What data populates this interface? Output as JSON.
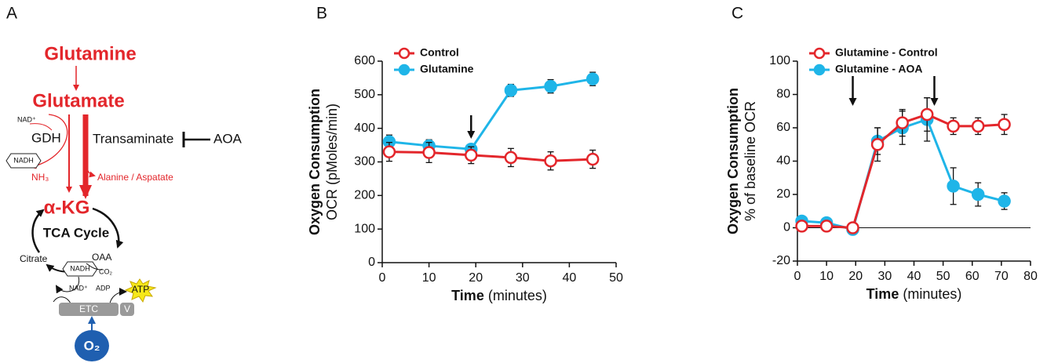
{
  "diagram": {
    "label": "A",
    "glutamine": "Glutamine",
    "glutamate": "Glutamate",
    "nad_top": "NAD⁺",
    "gdh": "GDH",
    "nadh_top": "NADH",
    "nh3": "NH₃",
    "transaminate": "Transaminate",
    "aoa": "AOA",
    "alanine": "Alanine / Aspatate",
    "akg": "α-KG",
    "tca": "TCA Cycle",
    "citrate": "Citrate",
    "oaa": "OAA",
    "nadh_bottom": "NADH",
    "co2": "CO₂",
    "nad_bottom": "NAD⁺",
    "adp": "ADP",
    "atp": "ATP",
    "etc": "ETC",
    "v": "V",
    "o2": "O₂"
  },
  "chart_data": [
    {
      "type": "line",
      "label": "B",
      "ylabel": "Oxygen Consumption",
      "ylabel_sub": "OCR (pMoles/min)",
      "xlabel": "Time",
      "xlabel_sub": "(minutes)",
      "x": [
        1.5,
        10,
        19,
        27.5,
        36,
        45
      ],
      "series": [
        {
          "name": "Glutamine",
          "color": "#1fb5e8",
          "filled": true,
          "values": [
            360,
            348,
            338,
            513,
            525,
            547
          ],
          "errors": [
            20,
            18,
            15,
            18,
            20,
            20
          ]
        },
        {
          "name": "Control",
          "color": "#e3262b",
          "filled": false,
          "values": [
            330,
            328,
            320,
            313,
            303,
            308
          ],
          "errors": [
            28,
            30,
            25,
            27,
            27,
            27
          ]
        }
      ],
      "legend_order": [
        1,
        0
      ],
      "legend": "upper left",
      "xlim": [
        0,
        50
      ],
      "xticks": [
        0,
        10,
        20,
        30,
        40,
        50
      ],
      "ylim": [
        0,
        600
      ],
      "yticks": [
        0,
        100,
        200,
        300,
        400,
        500,
        600
      ],
      "arrows_x": [
        19
      ],
      "zero_line": false
    },
    {
      "type": "line",
      "label": "C",
      "ylabel": "Oxygen Consumption",
      "ylabel_sub": "% of baseline OCR",
      "xlabel": "Time",
      "xlabel_sub": "(minutes)",
      "x": [
        1.5,
        10,
        19,
        27.5,
        36,
        44.5,
        53.5,
        62,
        71
      ],
      "series": [
        {
          "name": "Glutamine - AOA",
          "color": "#1fb5e8",
          "filled": true,
          "values": [
            4,
            3,
            -1,
            52,
            60,
            65,
            25,
            20,
            16
          ],
          "errors": [
            2,
            2,
            1,
            8,
            10,
            13,
            11,
            7,
            5
          ]
        },
        {
          "name": "Glutamine - Control",
          "color": "#e3262b",
          "filled": false,
          "values": [
            1,
            1,
            0,
            50,
            63,
            68,
            61,
            61,
            62
          ],
          "errors": [
            2,
            2,
            2,
            10,
            8,
            10,
            5,
            5,
            6
          ]
        }
      ],
      "legend_order": [
        1,
        0
      ],
      "legend": "upper left",
      "xlim": [
        0,
        80
      ],
      "xticks": [
        0,
        10,
        20,
        30,
        40,
        50,
        60,
        70,
        80
      ],
      "ylim": [
        -20,
        100
      ],
      "yticks": [
        -20,
        0,
        20,
        40,
        60,
        80,
        100
      ],
      "arrows_x": [
        19,
        47
      ],
      "zero_line": true
    }
  ]
}
